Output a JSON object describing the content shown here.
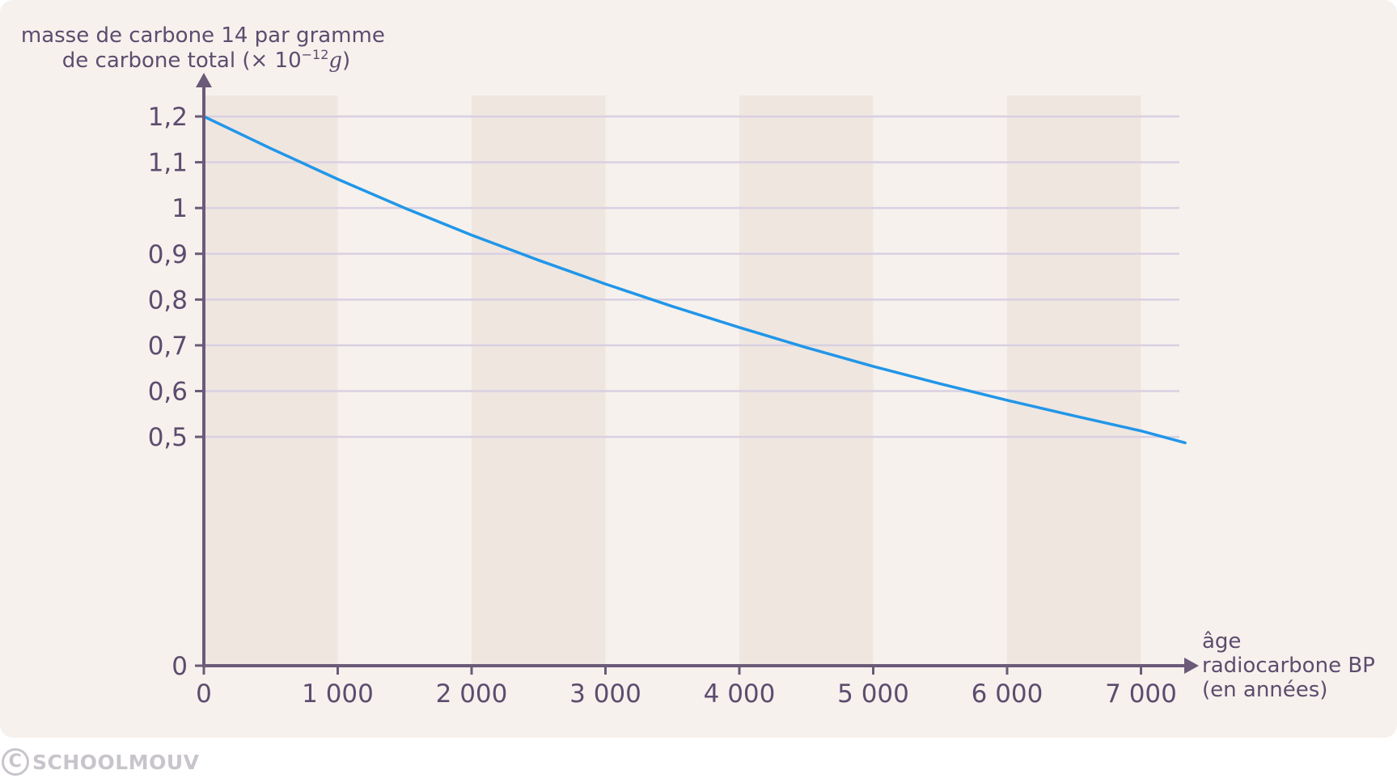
{
  "chart_data": {
    "type": "line",
    "ylabel_line1": "masse de carbone 14 par gramme",
    "ylabel_line2_prefix": "de carbone total (× 10",
    "ylabel_exponent": "−12",
    "ylabel_unit": "g",
    "ylabel_close": ")",
    "xlabel_lines": [
      "âge",
      "radiocarbone BP",
      "(en années)"
    ],
    "xlim": [
      0,
      7300
    ],
    "ylim": [
      0,
      1.2
    ],
    "x_ticks": [
      {
        "value": 0,
        "label": "0"
      },
      {
        "value": 1000,
        "label": "1 000"
      },
      {
        "value": 2000,
        "label": "2 000"
      },
      {
        "value": 3000,
        "label": "3 000"
      },
      {
        "value": 4000,
        "label": "4 000"
      },
      {
        "value": 5000,
        "label": "5 000"
      },
      {
        "value": 6000,
        "label": "6 000"
      },
      {
        "value": 7000,
        "label": "7 000"
      }
    ],
    "y_ticks": [
      {
        "value": 0,
        "label": "0"
      },
      {
        "value": 0.5,
        "label": "0,5"
      },
      {
        "value": 0.6,
        "label": "0,6"
      },
      {
        "value": 0.7,
        "label": "0,7"
      },
      {
        "value": 0.8,
        "label": "0,8"
      },
      {
        "value": 0.9,
        "label": "0,9"
      },
      {
        "value": 1.0,
        "label": "1"
      },
      {
        "value": 1.1,
        "label": "1,1"
      },
      {
        "value": 1.2,
        "label": "1,2"
      }
    ],
    "grid": true,
    "shaded_bands": [
      [
        0,
        1000
      ],
      [
        2000,
        3000
      ],
      [
        4000,
        5000
      ],
      [
        6000,
        7000
      ]
    ],
    "series": [
      {
        "color": "#2196e8",
        "points": [
          [
            0,
            1.2
          ],
          [
            500,
            1.13
          ],
          [
            1000,
            1.063
          ],
          [
            1500,
            1.0
          ],
          [
            2000,
            0.941
          ],
          [
            2500,
            0.886
          ],
          [
            3000,
            0.834
          ],
          [
            3500,
            0.785
          ],
          [
            4000,
            0.739
          ],
          [
            4500,
            0.695
          ],
          [
            5000,
            0.654
          ],
          [
            5500,
            0.616
          ],
          [
            6000,
            0.58
          ],
          [
            6500,
            0.546
          ],
          [
            7000,
            0.513
          ],
          [
            7330,
            0.487
          ]
        ]
      }
    ]
  },
  "colors": {
    "background": "#f6f1ed",
    "band": "#efe6e0",
    "grid": "#d9d0e2",
    "axis": "#6b5a78",
    "text": "#5b4d6e",
    "watermark": "#c9c4cc"
  },
  "watermark": {
    "icon": "copyright-icon",
    "symbol": "C",
    "text": "SCHOOLMOUV"
  }
}
